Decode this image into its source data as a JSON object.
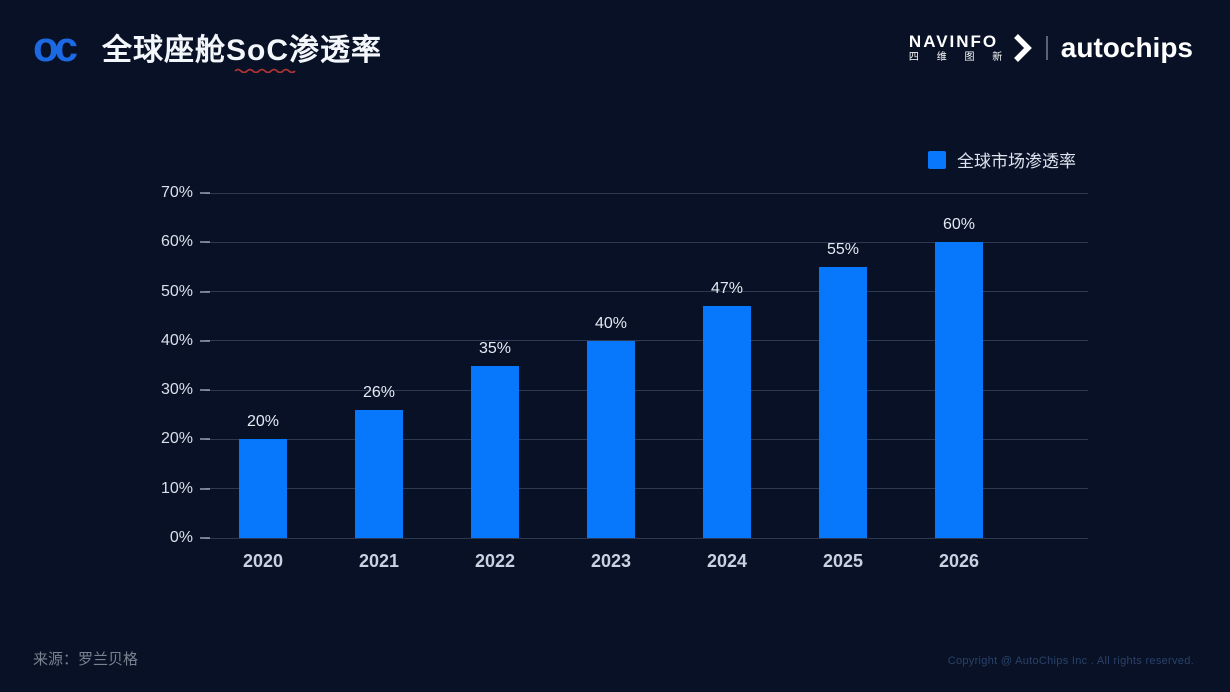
{
  "slide": {
    "logo_text": "oc",
    "title": "全球座舱SoC渗透率",
    "brand": {
      "navinfo_name": "NAVINFO",
      "navinfo_cn": "四 维 图 新",
      "autochips_name": "autochips"
    },
    "legend": {
      "label": "全球市场渗透率"
    },
    "footer": {
      "source": "来源：罗兰贝格",
      "copyright": "Copyright @ AutoChips Inc . All rights reserved."
    }
  },
  "chart_data": {
    "type": "bar",
    "title": "全球座舱SoC渗透率",
    "series_name": "全球市场渗透率",
    "categories": [
      "2020",
      "2021",
      "2022",
      "2023",
      "2024",
      "2025",
      "2026"
    ],
    "values": [
      20,
      26,
      35,
      40,
      47,
      55,
      60
    ],
    "data_labels": [
      "20%",
      "26%",
      "35%",
      "40%",
      "47%",
      "55%",
      "60%"
    ],
    "xlabel": "",
    "ylabel": "",
    "ylim": [
      0,
      70
    ],
    "y_ticks": [
      0,
      10,
      20,
      30,
      40,
      50,
      60,
      70
    ],
    "y_tick_labels": [
      "0%",
      "10%",
      "20%",
      "30%",
      "40%",
      "50%",
      "60%",
      "70%"
    ],
    "grid": true,
    "legend_position": "top-right",
    "bar_color": "#0778fb",
    "background_color": "#081126",
    "source_note": "来源：罗兰贝格"
  }
}
